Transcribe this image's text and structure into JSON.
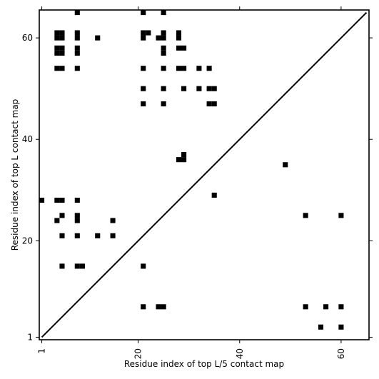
{
  "chart_data": {
    "type": "heatmap",
    "title": "",
    "xlabel": "Residue index of top L/5 contact map",
    "ylabel": "Residue index of top L contact map",
    "xlim": [
      0.5,
      65.5
    ],
    "ylim": [
      0.5,
      65.5
    ],
    "x_ticks": [
      1,
      20,
      40,
      60
    ],
    "x_tick_labels": [
      "1",
      "20",
      "40",
      "60"
    ],
    "y_ticks": [
      1,
      20,
      40,
      60
    ],
    "y_tick_labels": [
      "1",
      "20",
      "40",
      "60"
    ],
    "diagonal": [
      [
        1,
        1
      ],
      [
        65,
        65
      ]
    ],
    "grid": false,
    "cell_color": "#000000",
    "upper_triangle": [
      [
        8,
        65
      ],
      [
        21,
        65
      ],
      [
        25,
        65
      ],
      [
        4,
        61
      ],
      [
        5,
        61
      ],
      [
        8,
        61
      ],
      [
        21,
        61
      ],
      [
        22,
        61
      ],
      [
        25,
        61
      ],
      [
        28,
        61
      ],
      [
        4,
        60
      ],
      [
        5,
        60
      ],
      [
        8,
        60
      ],
      [
        12,
        60
      ],
      [
        21,
        60
      ],
      [
        24,
        60
      ],
      [
        25,
        60
      ],
      [
        28,
        60
      ],
      [
        4,
        58
      ],
      [
        5,
        58
      ],
      [
        8,
        58
      ],
      [
        25,
        58
      ],
      [
        4,
        57
      ],
      [
        5,
        57
      ],
      [
        8,
        57
      ],
      [
        25,
        57
      ],
      [
        28,
        58
      ],
      [
        29,
        58
      ],
      [
        4,
        54
      ],
      [
        5,
        54
      ],
      [
        8,
        54
      ],
      [
        21,
        54
      ],
      [
        25,
        54
      ],
      [
        28,
        54
      ],
      [
        29,
        54
      ],
      [
        32,
        54
      ],
      [
        34,
        54
      ],
      [
        21,
        50
      ],
      [
        25,
        50
      ],
      [
        29,
        50
      ],
      [
        32,
        50
      ],
      [
        34,
        50
      ],
      [
        35,
        50
      ],
      [
        21,
        47
      ],
      [
        25,
        47
      ],
      [
        34,
        47
      ],
      [
        35,
        47
      ],
      [
        28,
        36
      ],
      [
        29,
        36
      ],
      [
        29,
        37
      ],
      [
        49,
        35
      ]
    ],
    "lower_triangle": [
      [
        1,
        28
      ],
      [
        4,
        28
      ],
      [
        5,
        28
      ],
      [
        8,
        28
      ],
      [
        35,
        29
      ],
      [
        5,
        25
      ],
      [
        8,
        25
      ],
      [
        53,
        25
      ],
      [
        60,
        25
      ],
      [
        4,
        24
      ],
      [
        8,
        24
      ],
      [
        15,
        24
      ],
      [
        5,
        21
      ],
      [
        8,
        21
      ],
      [
        12,
        21
      ],
      [
        15,
        21
      ],
      [
        5,
        15
      ],
      [
        8,
        15
      ],
      [
        9,
        15
      ],
      [
        21,
        15
      ],
      [
        21,
        7
      ],
      [
        24,
        7
      ],
      [
        25,
        7
      ],
      [
        53,
        7
      ],
      [
        57,
        7
      ],
      [
        60,
        7
      ],
      [
        56,
        3
      ],
      [
        60,
        3
      ]
    ]
  }
}
